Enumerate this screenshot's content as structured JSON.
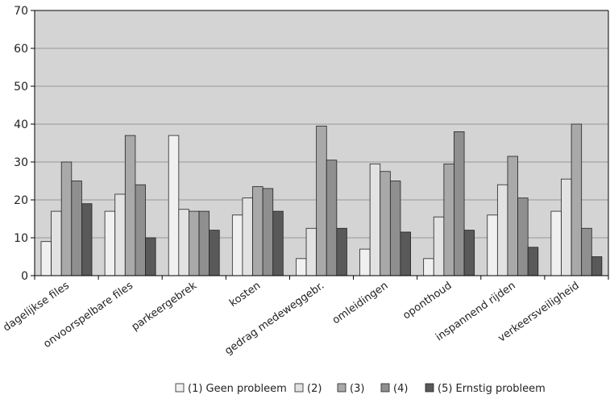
{
  "chart_data": {
    "type": "bar",
    "title": "",
    "xlabel": "",
    "ylabel": "",
    "ylim": [
      0,
      70
    ],
    "yticks": [
      0,
      10,
      20,
      30,
      40,
      50,
      60,
      70
    ],
    "grid": true,
    "legend_position": "bottom",
    "categories": [
      "dagelijkse files",
      "onvoorspelbare files",
      "parkeergebrek",
      "kosten",
      "gedrag medeweggebr.",
      "omleidingen",
      "oponthoud",
      "inspannend rijden",
      "verkeersveiligheid"
    ],
    "series": [
      {
        "name": "(1) Geen probleem",
        "color": "#f0f0f0",
        "values": [
          9,
          17,
          37,
          16,
          4.5,
          7,
          4.5,
          16,
          17
        ]
      },
      {
        "name": "(2)",
        "color": "#e2e2e2",
        "values": [
          17,
          21.5,
          17.5,
          20.5,
          12.5,
          29.5,
          15.5,
          24,
          25.5
        ]
      },
      {
        "name": "(3)",
        "color": "#a9a9a9",
        "values": [
          30,
          37,
          17,
          23.5,
          39.5,
          27.5,
          29.5,
          31.5,
          40
        ]
      },
      {
        "name": "(4)",
        "color": "#8f8f8f",
        "values": [
          25,
          24,
          17,
          23,
          30.5,
          25,
          38,
          20.5,
          12.5
        ]
      },
      {
        "name": "(5) Ernstig probleem",
        "color": "#595959",
        "values": [
          19,
          10,
          12,
          17,
          12.5,
          11.5,
          12,
          7.5,
          5
        ]
      }
    ],
    "plot_background": "#d4d4d4",
    "grid_color": "#999999"
  }
}
